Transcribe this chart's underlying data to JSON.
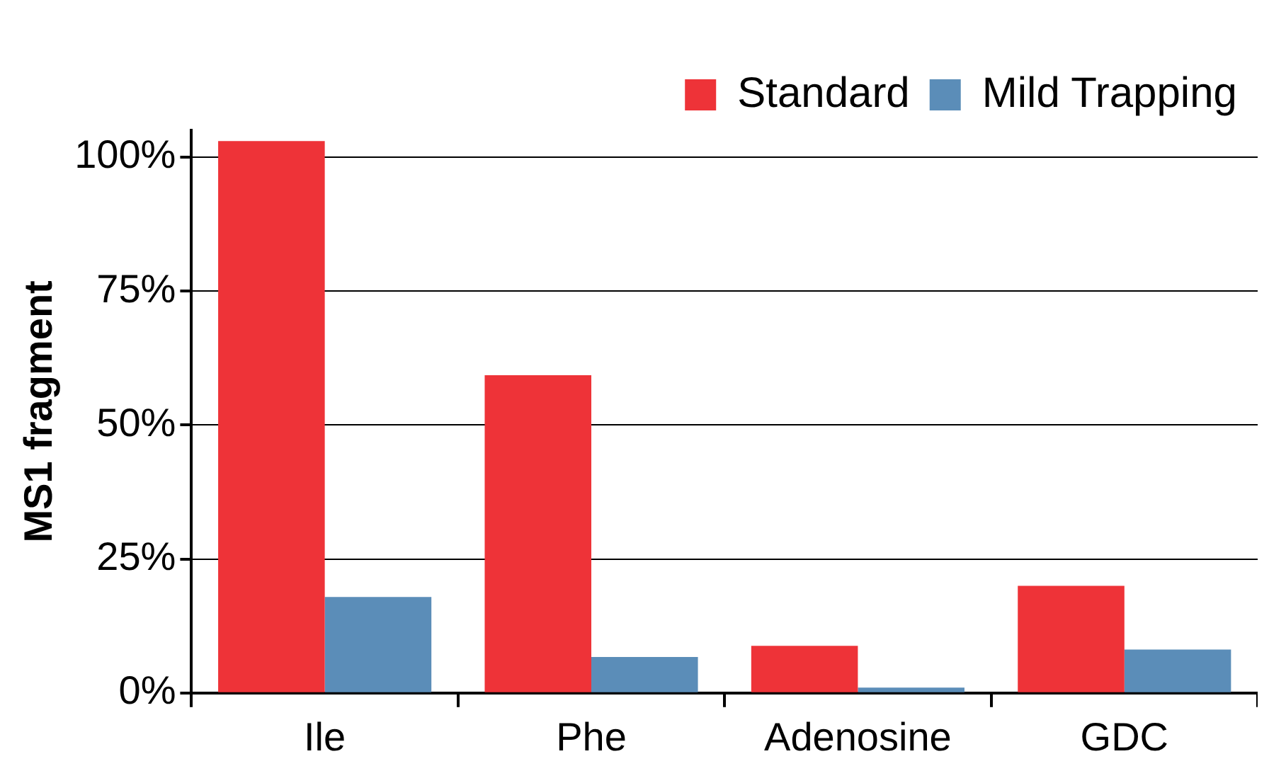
{
  "chart_data": {
    "type": "bar",
    "ylabel": "MS1 fragment",
    "categories": [
      "Ile",
      "Phe",
      "Adenosine",
      "GDC"
    ],
    "series": [
      {
        "name": "Standard",
        "color": "#ee3338",
        "values": [
          103,
          59.3,
          8.8,
          20
        ]
      },
      {
        "name": "Mild Trapping",
        "color": "#5b8db8",
        "values": [
          17.9,
          6.7,
          1,
          8.1
        ]
      }
    ],
    "ylim": [
      0,
      105
    ],
    "yticks": [
      {
        "value": 0,
        "label": "0%"
      },
      {
        "value": 25,
        "label": "25%"
      },
      {
        "value": 50,
        "label": "50%"
      },
      {
        "value": 75,
        "label": "75%"
      },
      {
        "value": 100,
        "label": "100%"
      }
    ],
    "grid": "y",
    "legend": "top right"
  }
}
